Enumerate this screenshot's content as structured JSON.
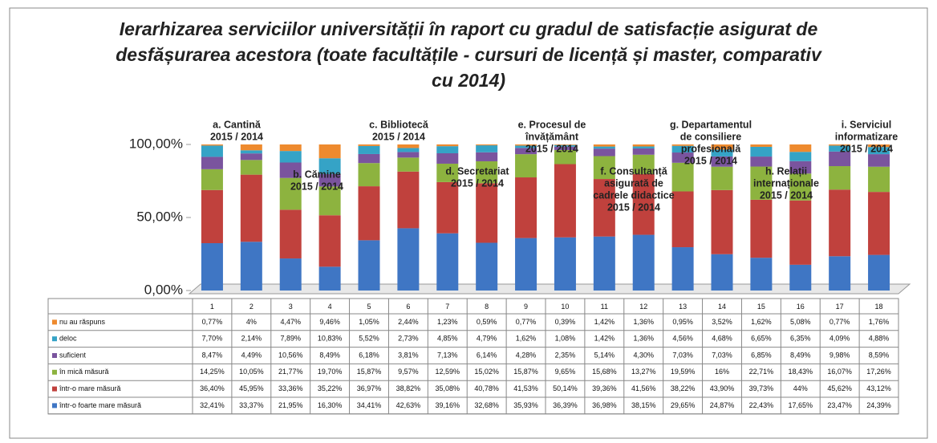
{
  "chart_data": {
    "type": "stacked_bar",
    "title": "Ierarhizarea serviciilor universității în raport cu gradul de satisfacție asigurat de desfășurarea acestora (toate facultățile - cursuri de licență și master, comparativ cu 2014)",
    "categories": [
      "1",
      "2",
      "3",
      "4",
      "5",
      "6",
      "7",
      "8",
      "9",
      "10",
      "11",
      "12",
      "13",
      "14",
      "15",
      "16",
      "17",
      "18"
    ],
    "ylim": [
      0,
      100
    ],
    "yticks": [
      {
        "value": 0,
        "label": "0,00%"
      },
      {
        "value": 50,
        "label": "50,00%"
      },
      {
        "value": 100,
        "label": "100,00%"
      }
    ],
    "series": [
      {
        "name": "într-o foarte mare măsură",
        "color": "#3f76c4",
        "values": [
          32.41,
          33.37,
          21.95,
          16.3,
          34.41,
          42.63,
          39.16,
          32.68,
          35.93,
          36.39,
          36.98,
          38.15,
          29.65,
          24.87,
          22.43,
          17.65,
          23.47,
          24.39
        ],
        "value_labels": [
          "32,41%",
          "33,37%",
          "21,95%",
          "16,30%",
          "34,41%",
          "42,63%",
          "39,16%",
          "32,68%",
          "35,93%",
          "36,39%",
          "36,98%",
          "38,15%",
          "29,65%",
          "24,87%",
          "22,43%",
          "17,65%",
          "23,47%",
          "24,39%"
        ]
      },
      {
        "name": "într-o mare măsură",
        "color": "#c0413d",
        "values": [
          36.4,
          45.95,
          33.36,
          35.22,
          36.97,
          38.82,
          35.08,
          40.78,
          41.53,
          50.14,
          39.36,
          41.56,
          38.22,
          43.9,
          39.73,
          44,
          45.62,
          43.12
        ],
        "value_labels": [
          "36,40%",
          "45,95%",
          "33,36%",
          "35,22%",
          "36,97%",
          "38,82%",
          "35,08%",
          "40,78%",
          "41,53%",
          "50,14%",
          "39,36%",
          "41,56%",
          "38,22%",
          "43,90%",
          "39,73%",
          "44%",
          "45,62%",
          "43,12%"
        ]
      },
      {
        "name": "în mică măsură",
        "color": "#8db33f",
        "values": [
          14.25,
          10.05,
          21.77,
          19.7,
          15.87,
          9.57,
          12.59,
          15.02,
          15.87,
          9.65,
          15.68,
          13.27,
          19.59,
          16,
          22.71,
          18.43,
          16.07,
          17.26
        ],
        "value_labels": [
          "14,25%",
          "10,05%",
          "21,77%",
          "19,70%",
          "15,87%",
          "9,57%",
          "12,59%",
          "15,02%",
          "15,87%",
          "9,65%",
          "15,68%",
          "13,27%",
          "19,59%",
          "16%",
          "22,71%",
          "18,43%",
          "16,07%",
          "17,26%"
        ]
      },
      {
        "name": "suficient",
        "color": "#7a549e",
        "values": [
          8.47,
          4.49,
          10.56,
          8.49,
          6.18,
          3.81,
          7.13,
          6.14,
          4.28,
          2.35,
          5.14,
          4.3,
          7.03,
          7.03,
          6.85,
          8.49,
          9.98,
          8.59
        ],
        "value_labels": [
          "8,47%",
          "4,49%",
          "10,56%",
          "8,49%",
          "6,18%",
          "3,81%",
          "7,13%",
          "6,14%",
          "4,28%",
          "2,35%",
          "5,14%",
          "4,30%",
          "7,03%",
          "7,03%",
          "6,85%",
          "8,49%",
          "9,98%",
          "8,59%"
        ]
      },
      {
        "name": "deloc",
        "color": "#35a3c6",
        "values": [
          7.7,
          2.14,
          7.89,
          10.83,
          5.52,
          2.73,
          4.85,
          4.79,
          1.62,
          1.08,
          1.42,
          1.36,
          4.56,
          4.68,
          6.65,
          6.35,
          4.09,
          4.88
        ],
        "value_labels": [
          "7,70%",
          "2,14%",
          "7,89%",
          "10,83%",
          "5,52%",
          "2,73%",
          "4,85%",
          "4,79%",
          "1,62%",
          "1,08%",
          "1,42%",
          "1,36%",
          "4,56%",
          "4,68%",
          "6,65%",
          "6,35%",
          "4,09%",
          "4,88%"
        ]
      },
      {
        "name": "nu au răspuns",
        "color": "#ee8a2e",
        "values": [
          0.77,
          4,
          4.47,
          9.46,
          1.05,
          2.44,
          1.23,
          0.59,
          0.77,
          0.39,
          1.42,
          1.36,
          0.95,
          3.52,
          1.62,
          5.08,
          0.77,
          1.76
        ],
        "value_labels": [
          "0,77%",
          "4%",
          "4,47%",
          "9,46%",
          "1,05%",
          "2,44%",
          "1,23%",
          "0,59%",
          "0,77%",
          "0,39%",
          "1,42%",
          "1,36%",
          "0,95%",
          "3,52%",
          "1,62%",
          "5,08%",
          "0,77%",
          "1,76%"
        ]
      }
    ],
    "annotations": [
      {
        "lines": [
          "a. Cantină",
          "2015 / 2014"
        ]
      },
      {
        "lines": [
          "b. Cămine",
          "2015 / 2014"
        ]
      },
      {
        "lines": [
          "c. Bibliotecă",
          "2015 / 2014"
        ]
      },
      {
        "lines": [
          "d. Secretariat",
          "2015 / 2014"
        ]
      },
      {
        "lines": [
          "e. Procesul de",
          "învățământ",
          "2015 / 2014"
        ]
      },
      {
        "lines": [
          "f. Consultanță",
          "asigurată de",
          "cadrele didactice",
          "2015 / 2014"
        ]
      },
      {
        "lines": [
          "g. Departamentul",
          "de consiliere",
          "profesională",
          "2015 / 2014"
        ]
      },
      {
        "lines": [
          "h. Relații",
          "internaționale",
          "2015 / 2014"
        ]
      },
      {
        "lines": [
          "i. Serviciul",
          "informatizare",
          "2015 / 2014"
        ]
      }
    ]
  }
}
